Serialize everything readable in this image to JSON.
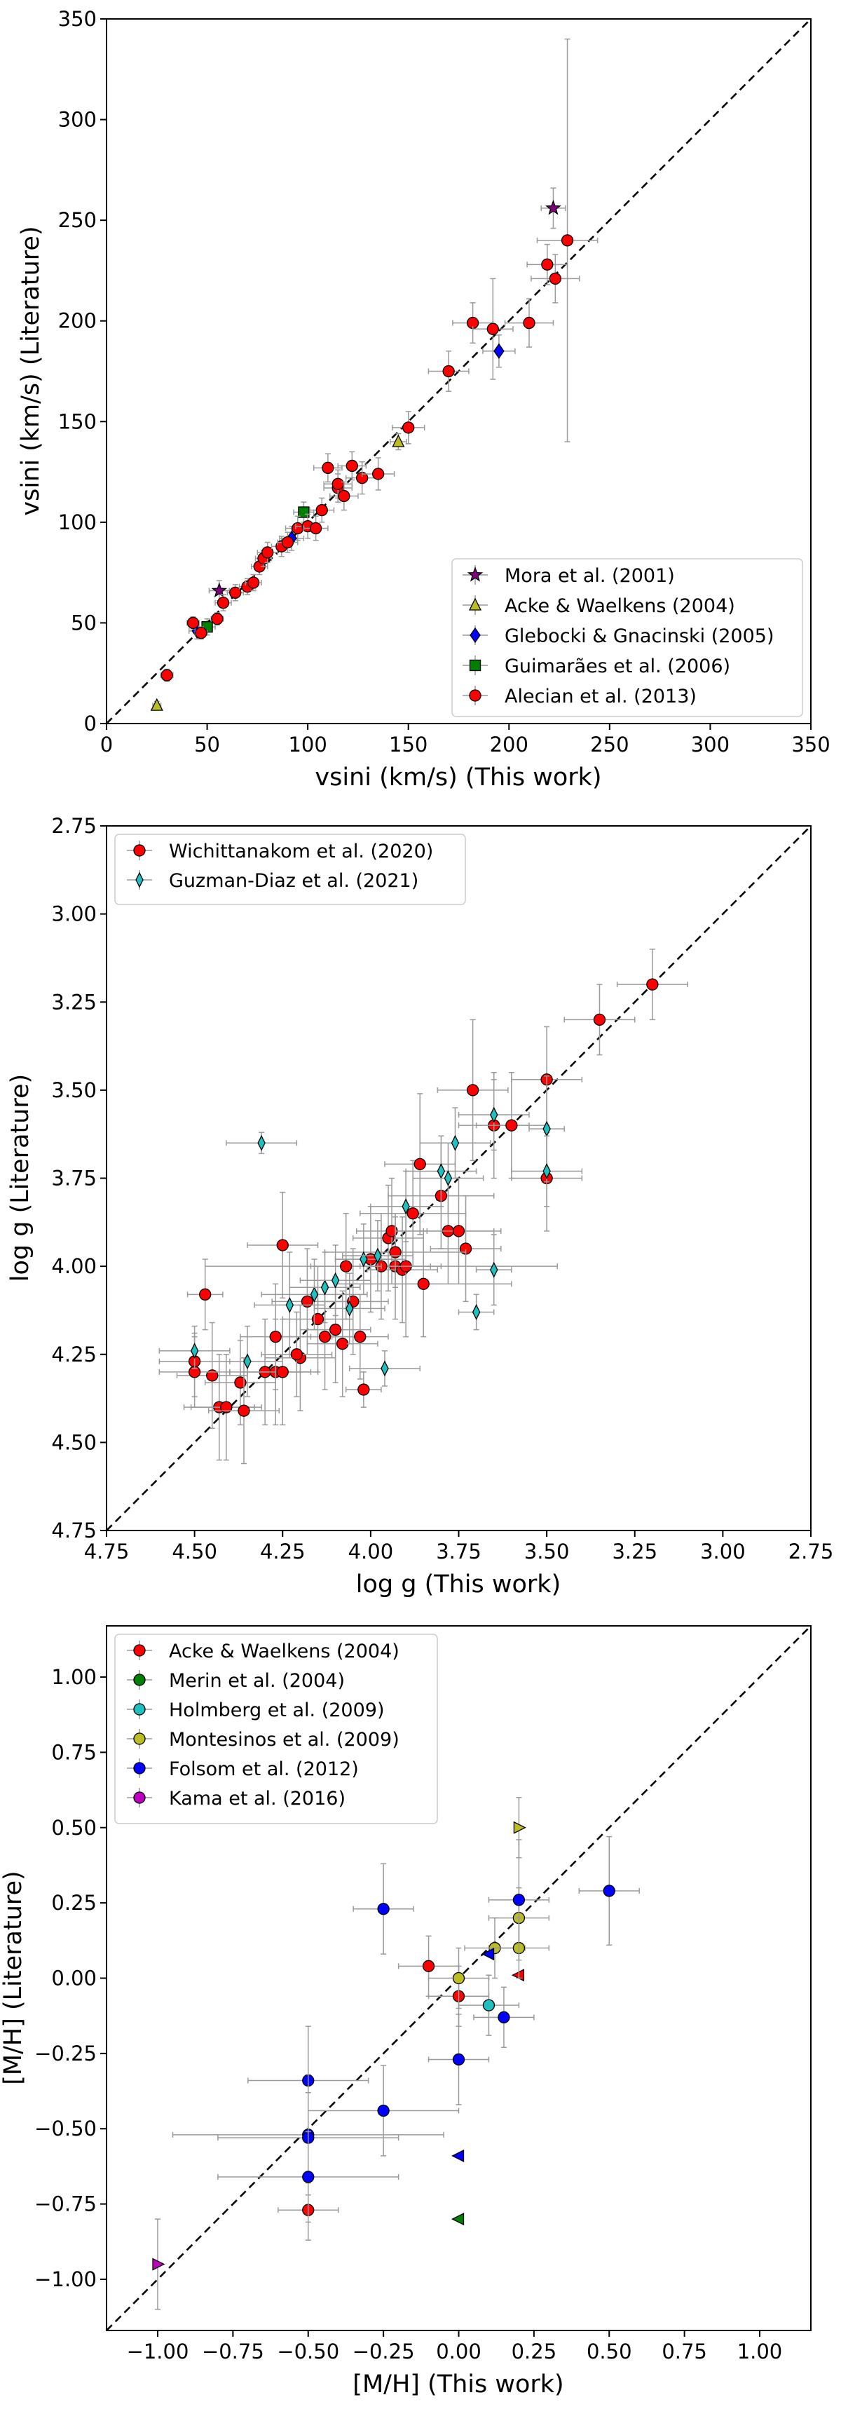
{
  "chart_data": [
    {
      "type": "scatter",
      "xlabel": "vsini (km/s) (This work)",
      "ylabel": "vsini (km/s) (Literature)",
      "xlim": [
        0,
        350
      ],
      "ylim": [
        0,
        350
      ],
      "reverse_axes": false,
      "xticks": [
        0,
        50,
        100,
        150,
        200,
        250,
        300,
        350
      ],
      "yticks": [
        0,
        50,
        100,
        150,
        200,
        250,
        300,
        350
      ],
      "tick_labels_x": [
        "0",
        "50",
        "100",
        "150",
        "200",
        "250",
        "300",
        "350"
      ],
      "tick_labels_y": [
        "0",
        "50",
        "100",
        "150",
        "200",
        "250",
        "300",
        "350"
      ],
      "identity_line": true,
      "legend_position": "lower-right",
      "series": [
        {
          "name": "Mora et al. (2001)",
          "marker": "star",
          "color": "#800080",
          "points": [
            [
              56,
              66,
              5,
              5
            ],
            [
              222,
              256,
              6,
              10
            ]
          ]
        },
        {
          "name": "Acke & Waelkens (2004)",
          "marker": "triangle-up",
          "color": "#bcbd22",
          "points": [
            [
              25,
              9,
              2,
              2
            ],
            [
              145,
              140,
              4,
              4
            ]
          ]
        },
        {
          "name": "Glebocki & Gnacinski (2005)",
          "marker": "diamond",
          "color": "#0000ff",
          "points": [
            [
              45,
              46,
              4,
              4
            ],
            [
              92,
              92,
              6,
              6
            ],
            [
              195,
              185,
              8,
              8
            ]
          ]
        },
        {
          "name": "Guimarães et al. (2006)",
          "marker": "square",
          "color": "#008000",
          "points": [
            [
              50,
              48,
              4,
              4
            ],
            [
              98,
              105,
              5,
              5
            ]
          ]
        },
        {
          "name": "Alecian et al. (2013)",
          "marker": "circle",
          "color": "#ff0000",
          "points": [
            [
              30,
              24,
              3,
              3
            ],
            [
              43,
              50,
              3,
              3
            ],
            [
              47,
              45,
              3,
              3
            ],
            [
              55,
              52,
              3,
              3
            ],
            [
              58,
              60,
              4,
              4
            ],
            [
              64,
              65,
              4,
              4
            ],
            [
              70,
              68,
              4,
              4
            ],
            [
              73,
              70,
              4,
              4
            ],
            [
              76,
              78,
              4,
              4
            ],
            [
              78,
              82,
              4,
              4
            ],
            [
              80,
              85,
              5,
              5
            ],
            [
              87,
              88,
              5,
              5
            ],
            [
              90,
              90,
              5,
              5
            ],
            [
              95,
              97,
              6,
              6
            ],
            [
              100,
              98,
              6,
              6
            ],
            [
              104,
              97,
              6,
              6
            ],
            [
              107,
              106,
              6,
              6
            ],
            [
              110,
              127,
              7,
              7
            ],
            [
              115,
              117,
              7,
              7
            ],
            [
              115,
              119,
              7,
              7
            ],
            [
              118,
              113,
              7,
              7
            ],
            [
              122,
              128,
              7,
              7
            ],
            [
              127,
              122,
              8,
              8
            ],
            [
              135,
              124,
              8,
              8
            ],
            [
              150,
              147,
              8,
              8
            ],
            [
              170,
              175,
              10,
              10
            ],
            [
              182,
              199,
              10,
              10
            ],
            [
              192,
              196,
              10,
              25
            ],
            [
              210,
              199,
              12,
              12
            ],
            [
              219,
              228,
              10,
              10
            ],
            [
              223,
              221,
              12,
              12
            ],
            [
              229,
              240,
              15,
              100
            ]
          ]
        }
      ]
    },
    {
      "type": "scatter",
      "xlabel": "log g (This work)",
      "ylabel": "log g (Literature)",
      "xlim": [
        4.75,
        2.75
      ],
      "ylim": [
        4.75,
        2.75
      ],
      "reverse_axes": true,
      "xticks": [
        4.75,
        4.5,
        4.25,
        4.0,
        3.75,
        3.5,
        3.25,
        3.0,
        2.75
      ],
      "yticks": [
        4.75,
        4.5,
        4.25,
        4.0,
        3.75,
        3.5,
        3.25,
        3.0,
        2.75
      ],
      "tick_labels_x": [
        "4.75",
        "4.50",
        "4.25",
        "4.00",
        "3.75",
        "3.50",
        "3.25",
        "3.00",
        "2.75"
      ],
      "tick_labels_y": [
        "4.75",
        "4.50",
        "4.25",
        "4.00",
        "3.75",
        "3.50",
        "3.25",
        "3.00",
        "2.75"
      ],
      "identity_line": true,
      "legend_position": "upper-left",
      "series": [
        {
          "name": "Wichittanakom et al. (2020)",
          "marker": "circle",
          "color": "#ff0000",
          "points": [
            [
              4.47,
              4.08,
              0.05,
              0.1
            ],
            [
              4.5,
              4.27,
              0.1,
              0.1
            ],
            [
              4.45,
              4.31,
              0.1,
              0.15
            ],
            [
              4.5,
              4.3,
              0.1,
              0.1
            ],
            [
              4.43,
              4.4,
              0.1,
              0.15
            ],
            [
              4.41,
              4.4,
              0.1,
              0.15
            ],
            [
              4.37,
              4.33,
              0.1,
              0.12
            ],
            [
              4.36,
              4.41,
              0.1,
              0.15
            ],
            [
              4.3,
              4.3,
              0.1,
              0.15
            ],
            [
              4.27,
              4.3,
              0.1,
              0.15
            ],
            [
              4.25,
              4.3,
              0.1,
              0.15
            ],
            [
              4.27,
              4.2,
              0.1,
              0.15
            ],
            [
              4.2,
              4.26,
              0.1,
              0.15
            ],
            [
              4.21,
              4.25,
              0.1,
              0.12
            ],
            [
              4.25,
              3.94,
              0.1,
              0.15
            ],
            [
              4.18,
              4.1,
              0.1,
              0.15
            ],
            [
              4.15,
              4.15,
              0.1,
              0.15
            ],
            [
              4.13,
              4.2,
              0.1,
              0.15
            ],
            [
              4.1,
              4.18,
              0.1,
              0.15
            ],
            [
              4.08,
              4.22,
              0.1,
              0.15
            ],
            [
              4.05,
              4.1,
              0.1,
              0.15
            ],
            [
              4.03,
              4.2,
              0.08,
              0.12
            ],
            [
              4.02,
              4.35,
              0.05,
              0.05
            ],
            [
              4.0,
              3.98,
              0.1,
              0.15
            ],
            [
              3.95,
              3.92,
              0.1,
              0.15
            ],
            [
              3.94,
              3.9,
              0.1,
              0.15
            ],
            [
              3.93,
              4.0,
              0.1,
              0.15
            ],
            [
              3.91,
              4.01,
              0.1,
              0.15
            ],
            [
              3.9,
              4.0,
              0.1,
              0.2
            ],
            [
              3.88,
              3.85,
              0.15,
              0.15
            ],
            [
              3.86,
              3.71,
              0.1,
              0.2
            ],
            [
              3.8,
              3.8,
              0.15,
              0.15
            ],
            [
              3.78,
              3.9,
              0.15,
              0.15
            ],
            [
              3.75,
              3.9,
              0.1,
              0.15
            ],
            [
              3.73,
              3.95,
              0.1,
              0.15
            ],
            [
              3.71,
              3.5,
              0.1,
              0.2
            ],
            [
              3.65,
              3.6,
              0.1,
              0.15
            ],
            [
              3.6,
              3.6,
              0.1,
              0.15
            ],
            [
              3.5,
              3.47,
              0.1,
              0.15
            ],
            [
              3.5,
              3.75,
              0.1,
              0.15
            ],
            [
              3.35,
              3.3,
              0.1,
              0.1
            ],
            [
              3.2,
              3.2,
              0.1,
              0.1
            ],
            [
              3.97,
              4.0,
              0.5,
              0.15
            ],
            [
              3.85,
              4.05,
              0.25,
              0.15
            ],
            [
              4.07,
              4.0,
              0.1,
              0.15
            ],
            [
              3.93,
              3.96,
              0.2,
              0.1
            ]
          ]
        },
        {
          "name": "Guzman-Diaz et al. (2021)",
          "marker": "thin-diamond",
          "color": "#20c0c0",
          "points": [
            [
              4.31,
              3.65,
              0.1,
              0.03
            ],
            [
              4.5,
              4.24,
              0.1,
              0.05
            ],
            [
              4.35,
              4.27,
              0.1,
              0.1
            ],
            [
              4.23,
              4.11,
              0.1,
              0.15
            ],
            [
              4.16,
              4.08,
              0.15,
              0.1
            ],
            [
              4.13,
              4.06,
              0.1,
              0.1
            ],
            [
              4.1,
              4.04,
              0.1,
              0.1
            ],
            [
              4.06,
              4.12,
              0.1,
              0.1
            ],
            [
              4.02,
              3.98,
              0.08,
              0.1
            ],
            [
              3.98,
              3.97,
              0.1,
              0.1
            ],
            [
              3.96,
              4.29,
              0.1,
              0.05
            ],
            [
              3.9,
              3.83,
              0.1,
              0.1
            ],
            [
              3.8,
              3.73,
              0.1,
              0.1
            ],
            [
              3.78,
              3.75,
              0.1,
              0.1
            ],
            [
              3.76,
              3.65,
              0.1,
              0.1
            ],
            [
              3.65,
              3.57,
              0.1,
              0.1
            ],
            [
              3.65,
              4.01,
              0.05,
              0.1
            ],
            [
              3.7,
              4.13,
              0.05,
              0.05
            ],
            [
              3.5,
              3.61,
              0.05,
              0.15
            ],
            [
              3.5,
              3.73,
              0.1,
              0.1
            ]
          ]
        }
      ]
    },
    {
      "type": "scatter",
      "xlabel": "[M/H] (This work)",
      "ylabel": "[M/H] (Literature)",
      "xlim": [
        -1.17,
        1.17
      ],
      "ylim": [
        -1.17,
        1.17
      ],
      "reverse_axes": false,
      "xticks": [
        -1.0,
        -0.75,
        -0.5,
        -0.25,
        0.0,
        0.25,
        0.5,
        0.75,
        1.0
      ],
      "yticks": [
        -1.0,
        -0.75,
        -0.5,
        -0.25,
        0.0,
        0.25,
        0.5,
        0.75,
        1.0
      ],
      "tick_labels_x": [
        "−1.00",
        "−0.75",
        "−0.50",
        "−0.25",
        "0.00",
        "0.25",
        "0.50",
        "0.75",
        "1.00"
      ],
      "tick_labels_y": [
        "−1.00",
        "−0.75",
        "−0.50",
        "−0.25",
        "0.00",
        "0.25",
        "0.50",
        "0.75",
        "1.00"
      ],
      "identity_line": true,
      "legend_position": "upper-left",
      "series": [
        {
          "name": "Acke & Waelkens (2004)",
          "marker": "circle",
          "color": "#ff0000",
          "points": [
            [
              -0.5,
              -0.77,
              0.1,
              0.1
            ],
            [
              -0.1,
              0.04,
              0.1,
              0.1
            ],
            [
              0.0,
              -0.06,
              0.1,
              0.1
            ]
          ],
          "triangles": [
            [
              0.2,
              0.01,
              0.0,
              0.0
            ]
          ]
        },
        {
          "name": "Merin et al. (2004)",
          "marker": "circle",
          "color": "#008000",
          "points": [],
          "triangles": [
            [
              0.0,
              -0.8,
              0.0,
              0.0
            ]
          ]
        },
        {
          "name": "Holmberg et al. (2009)",
          "marker": "circle",
          "color": "#20c0c0",
          "points": [
            [
              0.1,
              -0.09,
              0.1,
              0.1
            ]
          ],
          "triangles": []
        },
        {
          "name": "Montesinos et al. (2009)",
          "marker": "circle",
          "color": "#bcbd22",
          "points": [
            [
              0.0,
              0.0,
              0.1,
              0.1
            ],
            [
              0.12,
              0.1,
              0.1,
              0.1
            ],
            [
              0.2,
              0.2,
              0.1,
              0.1
            ],
            [
              0.2,
              0.1,
              0.1,
              0.1
            ]
          ],
          "triangles": [
            [
              0.2,
              0.5,
              0.0,
              0.1
            ]
          ]
        },
        {
          "name": "Folsom et al. (2012)",
          "marker": "circle",
          "color": "#0000ff",
          "points": [
            [
              -0.25,
              0.23,
              0.1,
              0.15
            ],
            [
              -0.5,
              -0.34,
              0.2,
              0.18
            ],
            [
              -0.5,
              -0.52,
              0.45,
              0.2
            ],
            [
              -0.5,
              -0.53,
              0.3,
              0.15
            ],
            [
              -0.5,
              -0.66,
              0.3,
              0.15
            ],
            [
              -0.25,
              -0.44,
              0.25,
              0.15
            ],
            [
              0.0,
              -0.27,
              0.1,
              0.15
            ],
            [
              0.15,
              -0.13,
              0.1,
              0.1
            ],
            [
              0.2,
              0.26,
              0.1,
              0.2
            ],
            [
              0.5,
              0.29,
              0.1,
              0.18
            ]
          ],
          "triangles": [
            [
              0.0,
              -0.59,
              0.0,
              0.0
            ],
            [
              0.1,
              0.08,
              0.0,
              0.0
            ]
          ]
        },
        {
          "name": "Kama et al. (2016)",
          "marker": "circle",
          "color": "#c000c0",
          "points": [],
          "triangles": [
            [
              -1.0,
              -0.95,
              0.0,
              0.15
            ]
          ]
        }
      ]
    }
  ]
}
